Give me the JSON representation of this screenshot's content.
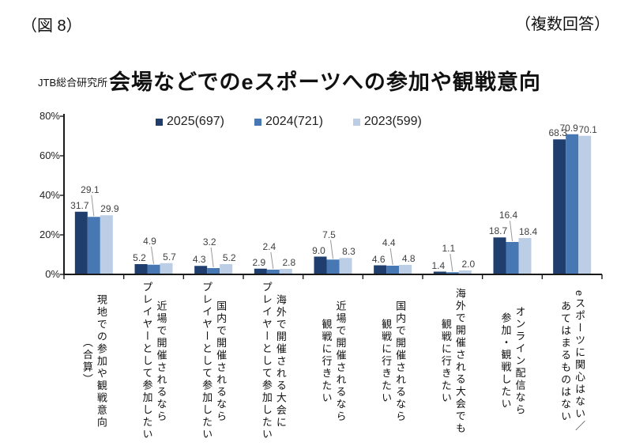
{
  "header": {
    "figure_label": "（図 8）",
    "response_note": "（複数回答）"
  },
  "source_label": "JTB総合研究所",
  "colors": {
    "series_2025": "#1f3e6e",
    "series_2024": "#4778b3",
    "series_2023": "#bccee6",
    "axis": "#1a1a1a",
    "value_label": "#404040",
    "leader_line": "#999999",
    "background": "#ffffff"
  },
  "chart_data": {
    "type": "bar",
    "title": "会場などでのeスポーツへの参加や観戦意向",
    "categories": [
      "現地での参加や観戦意向\n（合算）",
      "近場で開催されるなら\nプレイヤーとして参加したい",
      "国内で開催されるなら\nプレイヤーとして参加したい",
      "海外で開催される大会に\nプレイヤーとして参加したい",
      "近場で開催されるなら\n観戦に行きたい",
      "国内で開催されるなら\n観戦に行きたい",
      "海外で開催される大会でも\n観戦に行きたい",
      "オンライン配信なら\n参加・観戦したい",
      "eスポーツに関心はない／\nあてはまるものはない"
    ],
    "series": [
      {
        "name": "2025(697)",
        "color": "#1f3e6e",
        "values": [
          31.7,
          5.2,
          4.3,
          2.9,
          9.0,
          4.6,
          1.4,
          18.7,
          68.3
        ]
      },
      {
        "name": "2024(721)",
        "color": "#4778b3",
        "values": [
          29.1,
          4.9,
          3.2,
          2.4,
          7.5,
          4.4,
          1.1,
          16.4,
          70.9
        ]
      },
      {
        "name": "2023(599)",
        "color": "#bccee6",
        "values": [
          29.9,
          5.7,
          5.2,
          2.8,
          8.3,
          4.8,
          2.0,
          18.4,
          70.1
        ]
      }
    ],
    "ylim": [
      0,
      80
    ],
    "yticks": [
      "0%",
      "20%",
      "40%",
      "60%",
      "80%"
    ],
    "grid": false,
    "legend_position": "top",
    "value_labels": true
  }
}
